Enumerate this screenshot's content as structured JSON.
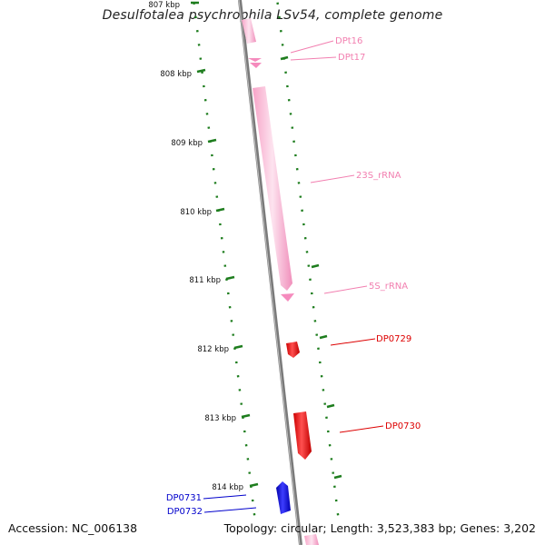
{
  "title": "Desulfotalea psychrophila LSv54, complete genome",
  "footer": {
    "accession": "Accession: NC_006138",
    "summary": "Topology: circular; Length: 3,523,383 bp; Genes: 3,202"
  },
  "colors": {
    "backbone": "#777777",
    "ticks": "#1e7d1e",
    "rna": "#f6a8c9",
    "forward_gene": "#ee0000",
    "reverse_gene": "#0000dd"
  },
  "tick_labels": [
    "807 kbp",
    "808 kbp",
    "809 kbp",
    "810 kbp",
    "811 kbp",
    "812 kbp",
    "813 kbp",
    "814 kbp"
  ],
  "features": [
    {
      "name": "DPt16",
      "label": "DPt16",
      "type": "tRNA",
      "color": "#f27fb0"
    },
    {
      "name": "DPt17",
      "label": "DPt17",
      "type": "tRNA",
      "color": "#f27fb0"
    },
    {
      "name": "23S_rRNA",
      "label": "23S_rRNA",
      "type": "rRNA",
      "color": "#f27fb0"
    },
    {
      "name": "5S_rRNA",
      "label": "5S_rRNA",
      "type": "rRNA",
      "color": "#f27fb0"
    },
    {
      "name": "DP0729",
      "label": "DP0729",
      "type": "CDS",
      "strand": "forward",
      "color": "#dd0000"
    },
    {
      "name": "DP0730",
      "label": "DP0730",
      "type": "CDS",
      "strand": "forward",
      "color": "#dd0000"
    },
    {
      "name": "DP0731",
      "label": "DP0731",
      "type": "CDS",
      "strand": "reverse",
      "color": "#0000cc"
    },
    {
      "name": "DP0732",
      "label": "DP0732",
      "type": "CDS",
      "strand": "reverse",
      "color": "#0000cc"
    }
  ]
}
